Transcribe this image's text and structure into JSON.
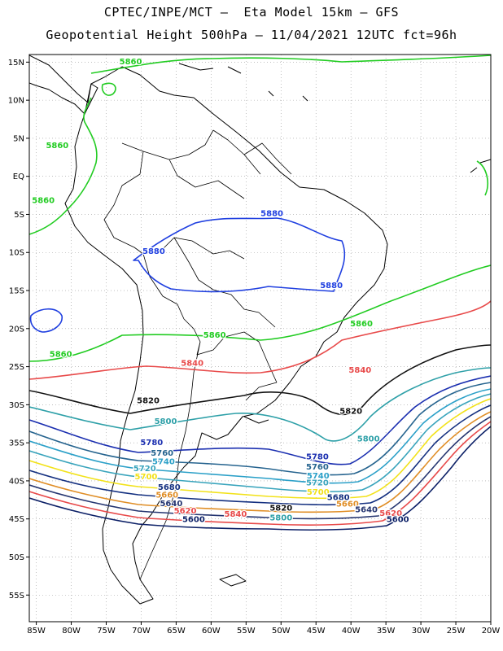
{
  "header": {
    "line1": "CPTEC/INPE/MCT –  Eta Model 15km – GFS",
    "line2": "Geopotential Height 500hPa – 11/04/2021 12UTC fct=96h"
  },
  "axes": {
    "lat_labels": [
      "15N",
      "10N",
      "5N",
      "EQ",
      "5S",
      "10S",
      "15S",
      "20S",
      "25S",
      "30S",
      "35S",
      "40S",
      "45S",
      "50S",
      "55S"
    ],
    "lat_values": [
      15,
      10,
      5,
      0,
      -5,
      -10,
      -15,
      -20,
      -25,
      -30,
      -35,
      -40,
      -45,
      -50,
      -55
    ],
    "lon_labels": [
      "85W",
      "80W",
      "75W",
      "70W",
      "65W",
      "60W",
      "55W",
      "50W",
      "45W",
      "40W",
      "35W",
      "30W",
      "25W",
      "20W"
    ],
    "lon_values": [
      -85,
      -80,
      -75,
      -70,
      -65,
      -60,
      -55,
      -50,
      -45,
      -40,
      -35,
      -30,
      -25,
      -20
    ],
    "lon_range": [
      -86,
      -20
    ],
    "lat_range": [
      -58.5,
      16
    ],
    "grid": "dotted"
  },
  "contours": [
    {
      "level": "5880",
      "color": "#1f3fe0",
      "labels": [
        {
          "lon": -51.3,
          "lat": -5.2
        },
        {
          "lon": -68.2,
          "lat": -10.2
        },
        {
          "lon": -42.8,
          "lat": -14.7
        }
      ]
    },
    {
      "level": "5860",
      "color": "#22cc22",
      "labels": [
        {
          "lon": -71.5,
          "lat": 14.7
        },
        {
          "lon": -82.0,
          "lat": 3.7
        },
        {
          "lon": -84.0,
          "lat": -3.5
        },
        {
          "lon": -38.5,
          "lat": -19.7
        },
        {
          "lon": -81.5,
          "lat": -23.7
        },
        {
          "lon": -59.5,
          "lat": -21.2
        }
      ]
    },
    {
      "level": "5840",
      "color": "#e84a4a",
      "labels": [
        {
          "lon": -62.7,
          "lat": -24.9
        },
        {
          "lon": -38.7,
          "lat": -25.8
        },
        {
          "lon": -56.5,
          "lat": -44.7
        }
      ]
    },
    {
      "level": "5820",
      "color": "#111111",
      "labels": [
        {
          "lon": -69.0,
          "lat": -29.8
        },
        {
          "lon": -40.0,
          "lat": -31.2
        },
        {
          "lon": -50.0,
          "lat": -43.9
        }
      ]
    },
    {
      "level": "5800",
      "color": "#2ea0a8",
      "labels": [
        {
          "lon": -66.5,
          "lat": -32.5
        },
        {
          "lon": -37.5,
          "lat": -34.8
        },
        {
          "lon": -50.0,
          "lat": -45.2
        }
      ]
    },
    {
      "level": "5780",
      "color": "#1b2fb0",
      "labels": [
        {
          "lon": -68.5,
          "lat": -35.3
        },
        {
          "lon": -44.8,
          "lat": -37.2
        }
      ]
    },
    {
      "level": "5760",
      "color": "#26648f",
      "labels": [
        {
          "lon": -67.0,
          "lat": -36.7
        },
        {
          "lon": -44.8,
          "lat": -38.5
        }
      ]
    },
    {
      "level": "5740",
      "color": "#2ba0c8",
      "labels": [
        {
          "lon": -66.8,
          "lat": -37.8
        },
        {
          "lon": -44.7,
          "lat": -39.7
        }
      ]
    },
    {
      "level": "5720",
      "color": "#39a4bc",
      "labels": [
        {
          "lon": -69.5,
          "lat": -38.7
        },
        {
          "lon": -44.8,
          "lat": -40.6
        }
      ]
    },
    {
      "level": "5700",
      "color": "#f2e21a",
      "labels": [
        {
          "lon": -69.3,
          "lat": -39.8
        },
        {
          "lon": -44.7,
          "lat": -41.8
        }
      ]
    },
    {
      "level": "5680",
      "color": "#143080",
      "labels": [
        {
          "lon": -66.0,
          "lat": -41.2
        },
        {
          "lon": -41.8,
          "lat": -42.5
        }
      ]
    },
    {
      "level": "5660",
      "color": "#e08e26",
      "labels": [
        {
          "lon": -66.3,
          "lat": -42.2
        },
        {
          "lon": -40.5,
          "lat": -43.4
        }
      ]
    },
    {
      "level": "5640",
      "color": "#253570",
      "labels": [
        {
          "lon": -65.7,
          "lat": -43.3
        },
        {
          "lon": -37.8,
          "lat": -44.1
        }
      ]
    },
    {
      "level": "5620",
      "color": "#e84a4a",
      "labels": [
        {
          "lon": -63.7,
          "lat": -44.3
        },
        {
          "lon": -34.3,
          "lat": -44.6
        }
      ]
    },
    {
      "level": "5600",
      "color": "#0b1f66",
      "labels": [
        {
          "lon": -62.5,
          "lat": -45.4
        },
        {
          "lon": -33.3,
          "lat": -45.4
        }
      ]
    }
  ]
}
